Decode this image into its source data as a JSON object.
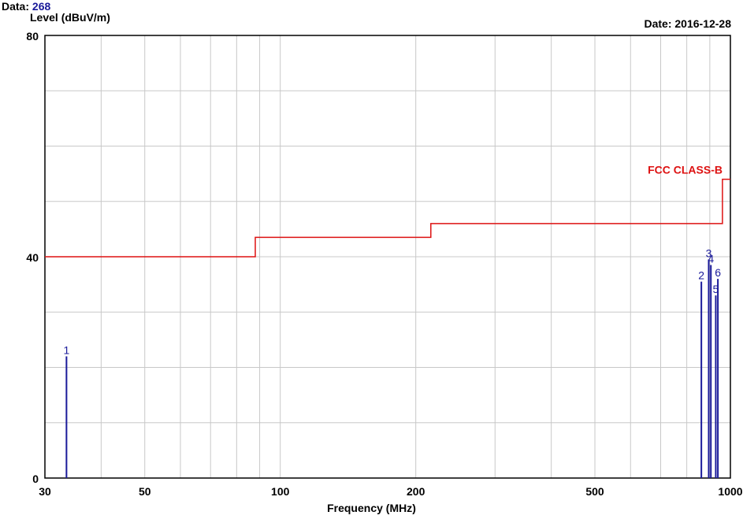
{
  "header": {
    "data_label": "Data: ",
    "data_value": "268",
    "date": "Date: 2016-12-28"
  },
  "chart_data": {
    "type": "line",
    "xlabel": "Frequency (MHz)",
    "ylabel": "Level (dBuV/m)",
    "xscale": "log",
    "xlim": [
      30,
      1000
    ],
    "ylim": [
      0,
      80
    ],
    "x_ticks": [
      30,
      50,
      100,
      200,
      500,
      1000
    ],
    "x_tick_labels": [
      "30",
      "50",
      "100",
      "200",
      "500",
      "1000"
    ],
    "y_ticks": [
      0,
      40,
      80
    ],
    "y_tick_labels": [
      "0",
      "40",
      "80"
    ],
    "grid": true,
    "series": [
      {
        "name": "FCC CLASS-B",
        "color": "#dd1111",
        "kind": "step",
        "x": [
          30,
          88,
          88,
          216,
          216,
          960,
          960,
          1000
        ],
        "y": [
          40,
          40,
          43.5,
          43.5,
          46,
          46,
          54,
          54
        ]
      }
    ],
    "markers": {
      "color": "#1a1a9a",
      "points": [
        {
          "label": "1",
          "x": 33.5,
          "y": 22
        },
        {
          "label": "2",
          "x": 862,
          "y": 35.5
        },
        {
          "label": "3",
          "x": 895,
          "y": 39.5
        },
        {
          "label": "4",
          "x": 905,
          "y": 38.5
        },
        {
          "label": "5",
          "x": 928,
          "y": 33
        },
        {
          "label": "6",
          "x": 938,
          "y": 36
        }
      ]
    }
  }
}
